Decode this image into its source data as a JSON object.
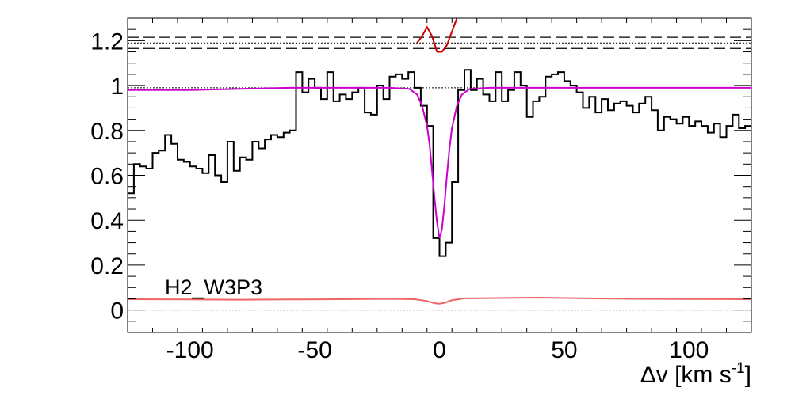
{
  "chart_data": {
    "type": "line",
    "title": "",
    "xlabel_prefix": "Δv [km s",
    "xlabel_sup": "-1",
    "xlabel_suffix": "]",
    "ylabel": "",
    "xlim": [
      -125,
      125
    ],
    "ylim": [
      -0.1,
      1.3
    ],
    "xticks": [
      -100,
      -50,
      0,
      50,
      100
    ],
    "yticks": [
      0,
      0.2,
      0.4,
      0.6,
      0.8,
      1,
      1.2
    ],
    "ytick_labels": [
      "0",
      "0.2",
      "0.4",
      "0.6",
      "0.8",
      "1",
      "1.2"
    ],
    "annotation": "H2_W3P3",
    "reference_levels": {
      "continuum_dotted": 0.99,
      "zero_dotted": 0.0,
      "upper_dotted": 1.19,
      "upper_dashed": [
        1.165,
        1.215
      ]
    },
    "series": [
      {
        "name": "",
        "style": "step",
        "color": "#000000",
        "x": [
          -125,
          -122.5,
          -120,
          -117.5,
          -115,
          -112.5,
          -110,
          -107.5,
          -105,
          -102.5,
          -100,
          -97.5,
          -95,
          -92.5,
          -90,
          -87.5,
          -85,
          -82.5,
          -80,
          -77.5,
          -75,
          -72.5,
          -70,
          -67.5,
          -65,
          -62.5,
          -60,
          -57.5,
          -55,
          -52.5,
          -50,
          -47.5,
          -45,
          -42.5,
          -40,
          -37.5,
          -35,
          -32.5,
          -30,
          -27.5,
          -25,
          -22.5,
          -20,
          -17.5,
          -15,
          -12.5,
          -10,
          -7.5,
          -5,
          -2.5,
          0,
          2.5,
          5,
          7.5,
          10,
          12.5,
          15,
          17.5,
          20,
          22.5,
          25,
          27.5,
          30,
          32.5,
          35,
          37.5,
          40,
          42.5,
          45,
          47.5,
          50,
          52.5,
          55,
          57.5,
          60,
          62.5,
          65,
          67.5,
          70,
          72.5,
          75,
          77.5,
          80,
          82.5,
          85,
          87.5,
          90,
          92.5,
          95,
          97.5,
          100,
          102.5,
          105,
          107.5,
          110,
          112.5,
          115,
          117.5,
          120,
          122.5
        ],
        "y": [
          0.52,
          0.65,
          0.64,
          0.63,
          0.7,
          0.71,
          0.78,
          0.74,
          0.67,
          0.66,
          0.64,
          0.63,
          0.61,
          0.69,
          0.6,
          0.57,
          0.75,
          0.62,
          0.68,
          0.67,
          0.75,
          0.72,
          0.76,
          0.78,
          0.77,
          0.79,
          0.8,
          1.06,
          0.97,
          1.03,
          0.99,
          0.94,
          1.06,
          0.93,
          0.96,
          0.94,
          0.97,
          0.99,
          0.88,
          0.87,
          1.0,
          0.94,
          1.04,
          1.05,
          1.03,
          1.06,
          0.99,
          0.91,
          0.82,
          0.32,
          0.24,
          0.3,
          0.57,
          0.98,
          1.07,
          0.98,
          1.03,
          0.96,
          0.93,
          1.06,
          0.93,
          0.98,
          1.06,
          1.0,
          0.86,
          0.93,
          0.95,
          1.04,
          1.05,
          1.06,
          1.02,
          1.0,
          0.97,
          0.9,
          0.95,
          0.88,
          0.94,
          0.89,
          0.92,
          0.93,
          0.91,
          0.88,
          0.92,
          0.95,
          0.89,
          0.8,
          0.86,
          0.85,
          0.83,
          0.86,
          0.82,
          0.84,
          0.82,
          0.79,
          0.83,
          0.77,
          0.82,
          0.87,
          0.81,
          0.82
        ]
      },
      {
        "name": "",
        "style": "line",
        "color": "#cc00cc",
        "x": [
          -125,
          -100,
          -80,
          -60,
          -40,
          -20,
          -12,
          -9,
          -7,
          -5,
          -4,
          -3,
          -2,
          -1,
          0,
          1,
          2,
          3,
          4,
          5,
          7,
          9,
          12,
          20,
          40,
          60,
          80,
          100,
          125
        ],
        "y": [
          0.98,
          0.98,
          0.985,
          0.99,
          0.99,
          0.99,
          0.985,
          0.96,
          0.91,
          0.82,
          0.74,
          0.62,
          0.5,
          0.39,
          0.32,
          0.36,
          0.47,
          0.6,
          0.72,
          0.81,
          0.91,
          0.96,
          0.985,
          0.99,
          0.99,
          0.99,
          0.99,
          0.99,
          0.99
        ]
      },
      {
        "name": "",
        "style": "line",
        "color": "#ee6666",
        "x": [
          -125,
          -100,
          -80,
          -60,
          -40,
          -20,
          -10,
          -5,
          -2,
          0,
          2,
          5,
          10,
          20,
          40,
          60,
          80,
          100,
          125
        ],
        "y": [
          0.048,
          0.047,
          0.046,
          0.047,
          0.048,
          0.05,
          0.048,
          0.04,
          0.03,
          0.028,
          0.032,
          0.044,
          0.052,
          0.053,
          0.055,
          0.052,
          0.05,
          0.049,
          0.048
        ]
      },
      {
        "name": "",
        "style": "line",
        "color": "#cc0000",
        "x": [
          -9,
          -7,
          -5,
          -3,
          -1,
          1,
          3,
          5,
          7
        ],
        "y": [
          1.19,
          1.22,
          1.26,
          1.22,
          1.15,
          1.15,
          1.18,
          1.24,
          1.3
        ]
      }
    ]
  }
}
